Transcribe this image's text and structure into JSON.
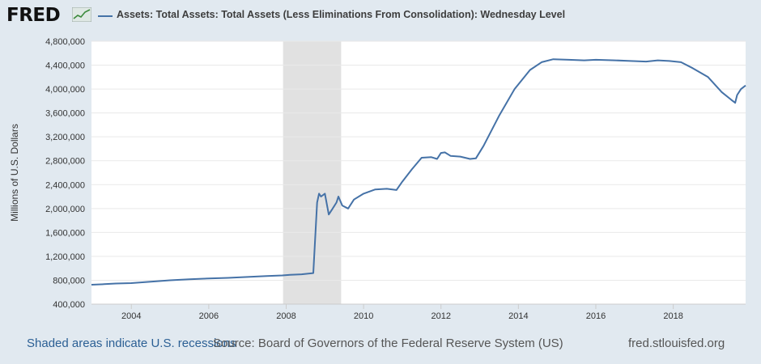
{
  "header": {
    "logo_text": "FRED",
    "legend_label": "Assets: Total Assets: Total Assets (Less Eliminations From Consolidation): Wednesday Level"
  },
  "footer": {
    "recession_note": "Shaded areas indicate U.S. recessions",
    "source": "Source: Board of Governors of the Federal Reserve System (US)",
    "url": "fred.stlouisfed.org"
  },
  "colors": {
    "background": "#e1e9f0",
    "plot_background": "#ffffff",
    "series": "#4572a7",
    "recession": "#e1e1e1",
    "grid": "#e9e9e9",
    "footer_link": "#2b5f94"
  },
  "chart_data": {
    "type": "line",
    "title": "Assets: Total Assets: Total Assets (Less Eliminations From Consolidation): Wednesday Level",
    "xlabel": "",
    "ylabel": "Millions of U.S. Dollars",
    "xlim": [
      2002.97,
      2019.87
    ],
    "ylim": [
      400000,
      4800000
    ],
    "x_ticks": [
      2004,
      2006,
      2008,
      2010,
      2012,
      2014,
      2016,
      2018
    ],
    "x_tick_labels": [
      "2004",
      "2006",
      "2008",
      "2010",
      "2012",
      "2014",
      "2016",
      "2018"
    ],
    "y_ticks": [
      400000,
      800000,
      1200000,
      1600000,
      2000000,
      2400000,
      2800000,
      3200000,
      3600000,
      4000000,
      4400000,
      4800000
    ],
    "y_tick_labels": [
      "400,000",
      "800,000",
      "1,200,000",
      "1,600,000",
      "2,000,000",
      "2,400,000",
      "2,800,000",
      "3,200,000",
      "3,600,000",
      "4,000,000",
      "4,400,000",
      "4,800,000"
    ],
    "grid": true,
    "legend": "top-left",
    "recessions": [
      {
        "start": 2007.92,
        "end": 2009.42
      }
    ],
    "series": [
      {
        "name": "Assets: Total Assets: Total Assets (Less Eliminations From Consolidation): Wednesday Level",
        "x": [
          2002.97,
          2003.3,
          2003.6,
          2004.0,
          2004.5,
          2005.0,
          2005.5,
          2006.0,
          2006.5,
          2007.0,
          2007.5,
          2007.9,
          2008.1,
          2008.4,
          2008.7,
          2008.75,
          2008.8,
          2008.85,
          2008.9,
          2009.0,
          2009.1,
          2009.2,
          2009.3,
          2009.35,
          2009.45,
          2009.6,
          2009.75,
          2010.0,
          2010.3,
          2010.6,
          2010.85,
          2011.0,
          2011.25,
          2011.5,
          2011.75,
          2011.9,
          2012.0,
          2012.1,
          2012.25,
          2012.5,
          2012.75,
          2012.9,
          2013.1,
          2013.5,
          2013.9,
          2014.3,
          2014.6,
          2014.9,
          2015.3,
          2015.7,
          2016.0,
          2016.5,
          2016.9,
          2017.3,
          2017.6,
          2017.9,
          2018.2,
          2018.5,
          2018.9,
          2019.25,
          2019.5,
          2019.6,
          2019.65,
          2019.75,
          2019.87
        ],
        "values": [
          725000,
          735000,
          745000,
          752000,
          775000,
          800000,
          815000,
          830000,
          840000,
          855000,
          870000,
          880000,
          890000,
          900000,
          920000,
          1500000,
          2100000,
          2250000,
          2200000,
          2250000,
          1900000,
          2000000,
          2100000,
          2200000,
          2050000,
          2000000,
          2150000,
          2250000,
          2320000,
          2330000,
          2310000,
          2450000,
          2660000,
          2850000,
          2860000,
          2830000,
          2930000,
          2940000,
          2880000,
          2870000,
          2830000,
          2840000,
          3050000,
          3550000,
          4000000,
          4320000,
          4450000,
          4500000,
          4490000,
          4480000,
          4490000,
          4480000,
          4470000,
          4460000,
          4480000,
          4470000,
          4450000,
          4350000,
          4200000,
          3950000,
          3820000,
          3770000,
          3900000,
          4000000,
          4060000
        ]
      }
    ]
  }
}
